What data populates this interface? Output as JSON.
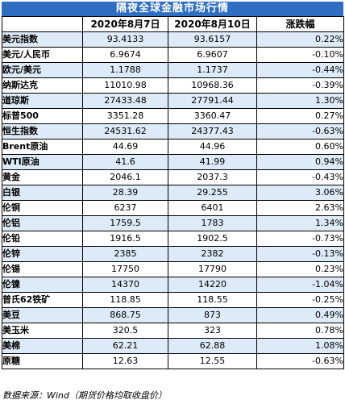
{
  "title": "隔夜全球金融市场行情",
  "headers": [
    "",
    "2020年8月7日",
    "2020年8月10日",
    "涨跌幅"
  ],
  "rows": [
    {
      "name": "美元指数",
      "d1": "93.4133",
      "d2": "93.6157",
      "chg": "0.22%"
    },
    {
      "name": "美元/人民币",
      "d1": "6.9674",
      "d2": "6.9607",
      "chg": "-0.10%"
    },
    {
      "name": "欧元/美元",
      "d1": "1.1788",
      "d2": "1.1737",
      "chg": "-0.44%"
    },
    {
      "name": "纳斯达克",
      "d1": "11010.98",
      "d2": "10968.36",
      "chg": "-0.39%"
    },
    {
      "name": "道琼斯",
      "d1": "27433.48",
      "d2": "27791.44",
      "chg": "1.30%"
    },
    {
      "name": "标普500",
      "d1": "3351.28",
      "d2": "3360.47",
      "chg": "0.27%"
    },
    {
      "name": "恒生指数",
      "d1": "24531.62",
      "d2": "24377.43",
      "chg": "-0.63%"
    },
    {
      "name": "Brent原油",
      "d1": "44.69",
      "d2": "44.96",
      "chg": "0.60%"
    },
    {
      "name": "WTI原油",
      "d1": "41.6",
      "d2": "41.99",
      "chg": "0.94%"
    },
    {
      "name": "黄金",
      "d1": "2046.1",
      "d2": "2037.3",
      "chg": "-0.43%"
    },
    {
      "name": "白银",
      "d1": "28.39",
      "d2": "29.255",
      "chg": "3.06%"
    },
    {
      "name": "伦铜",
      "d1": "6237",
      "d2": "6401",
      "chg": "2.63%"
    },
    {
      "name": "伦铝",
      "d1": "1759.5",
      "d2": "1783",
      "chg": "1.34%"
    },
    {
      "name": "伦铅",
      "d1": "1916.5",
      "d2": "1902.5",
      "chg": "-0.73%"
    },
    {
      "name": "伦锌",
      "d1": "2385",
      "d2": "2382",
      "chg": "-0.13%"
    },
    {
      "name": "伦锡",
      "d1": "17750",
      "d2": "17790",
      "chg": "0.23%"
    },
    {
      "name": "伦镍",
      "d1": "14370",
      "d2": "14220",
      "chg": "-1.04%"
    },
    {
      "name": "普氏62铁矿",
      "d1": "118.85",
      "d2": "118.55",
      "chg": "-0.25%"
    },
    {
      "name": "美豆",
      "d1": "868.75",
      "d2": "873",
      "chg": "0.49%"
    },
    {
      "name": "美玉米",
      "d1": "320.5",
      "d2": "323",
      "chg": "0.78%"
    },
    {
      "name": "美棉",
      "d1": "62.21",
      "d2": "62.88",
      "chg": "1.08%"
    },
    {
      "name": "原糖",
      "d1": "12.63",
      "d2": "12.55",
      "chg": "-0.63%"
    }
  ],
  "footer": "数据来源：Wind（期货价格均取收盘价）",
  "colors": {
    "title_bg": "#2f6fc3",
    "row_stripe": "#ddeaf7",
    "border": "#000000"
  }
}
